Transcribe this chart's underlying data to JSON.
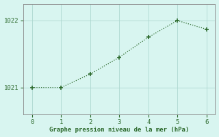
{
  "x": [
    0,
    1,
    2,
    3,
    4,
    5,
    6
  ],
  "y": [
    1021.0,
    1021.0,
    1021.2,
    1021.45,
    1021.75,
    1022.0,
    1021.87
  ],
  "line_color": "#2d6a2d",
  "marker_color": "#2d6a2d",
  "background_color": "#d8f5f0",
  "grid_color": "#aed8d0",
  "spine_color": "#888888",
  "xlabel": "Graphe pression niveau de la mer (hPa)",
  "xlabel_color": "#2d6a2d",
  "tick_color": "#2d6a2d",
  "ytick_labels": [
    1021,
    1022
  ],
  "xlim": [
    -0.3,
    6.3
  ],
  "ylim": [
    1020.6,
    1022.25
  ],
  "figsize": [
    3.2,
    2.0
  ],
  "dpi": 100
}
